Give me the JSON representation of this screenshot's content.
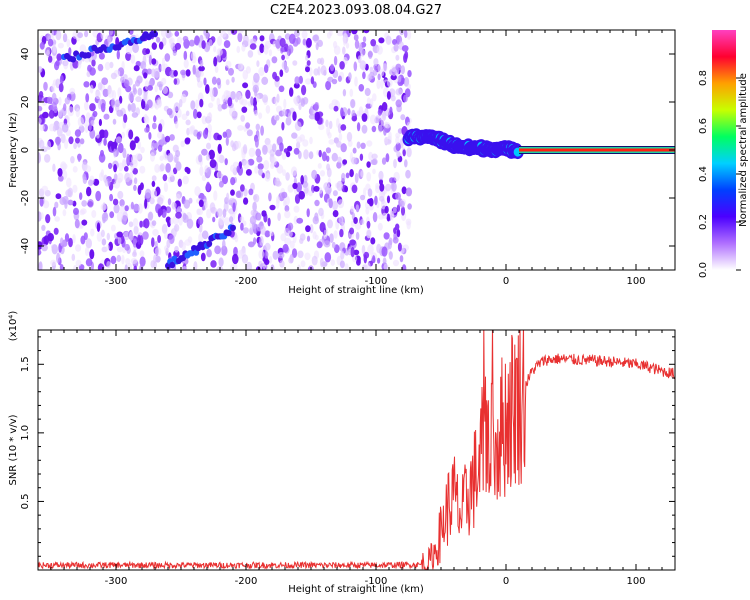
{
  "title": "C2E4.2023.093.08.04.G27",
  "chart_data": [
    {
      "type": "heatmap",
      "xlabel": "Height of straight line (km)",
      "ylabel": "Frequency (Hz)",
      "xlim": [
        -360,
        130
      ],
      "ylim": [
        -50,
        50
      ],
      "xticks": [
        -300,
        -200,
        -100,
        0,
        100
      ],
      "yticks": [
        -40,
        -20,
        0,
        20,
        40
      ],
      "colorbar": {
        "label": "Normalized spectral amplitude",
        "range": [
          0.0,
          1.0
        ],
        "ticks": [
          0.0,
          0.2,
          0.4,
          0.6,
          0.8
        ],
        "colormap": [
          "#ffffff",
          "#b070ff",
          "#4b00ff",
          "#0040ff",
          "#00d0ff",
          "#00ff60",
          "#c8ff00",
          "#ffa000",
          "#ff0030",
          "#ff40c0"
        ]
      },
      "features": {
        "noise_region_x": [
          -360,
          -80
        ],
        "signal_track": [
          {
            "x": -75,
            "freq": 5
          },
          {
            "x": -60,
            "freq": 6
          },
          {
            "x": -50,
            "freq": 4
          },
          {
            "x": -40,
            "freq": 2
          },
          {
            "x": -30,
            "freq": 1
          },
          {
            "x": -20,
            "freq": 0.8
          },
          {
            "x": -10,
            "freq": 0.5
          },
          {
            "x": 0,
            "freq": 0.3
          },
          {
            "x": 10,
            "freq": 0
          },
          {
            "x": 130,
            "freq": 0
          }
        ],
        "steady_carrier_x": [
          10,
          130
        ],
        "diagonal_streaks": [
          {
            "x": [
              -340,
              -270
            ],
            "freq": [
              38,
              48
            ]
          },
          {
            "x": [
              -260,
              -210
            ],
            "freq": [
              -48,
              -33
            ]
          }
        ]
      }
    },
    {
      "type": "line",
      "xlabel": "Height of straight line (km)",
      "ylabel": "SNR (10 * v/v)",
      "y_scale_note": "(x10⁴)",
      "xlim": [
        -360,
        130
      ],
      "ylim": [
        0,
        17500
      ],
      "xticks": [
        -300,
        -200,
        -100,
        0,
        100
      ],
      "yticks": [
        5000,
        10000,
        15000
      ],
      "ytick_labels": [
        "0.5",
        "1.0",
        "1.5"
      ],
      "series": [
        {
          "color": "#e83030",
          "x": [
            -360,
            -100,
            -60,
            -55,
            -50,
            -45,
            -40,
            -35,
            -30,
            -25,
            -20,
            -15,
            -10,
            -5,
            0,
            5,
            10,
            15,
            20,
            25,
            30,
            40,
            60,
            80,
            100,
            110,
            120,
            130
          ],
          "y": [
            350,
            350,
            400,
            1200,
            2800,
            4500,
            5500,
            3800,
            5200,
            6500,
            7500,
            11000,
            8500,
            10000,
            11000,
            12000,
            12500,
            13500,
            14500,
            15000,
            15300,
            15400,
            15300,
            15200,
            15000,
            14800,
            14500,
            14300
          ]
        }
      ]
    }
  ]
}
